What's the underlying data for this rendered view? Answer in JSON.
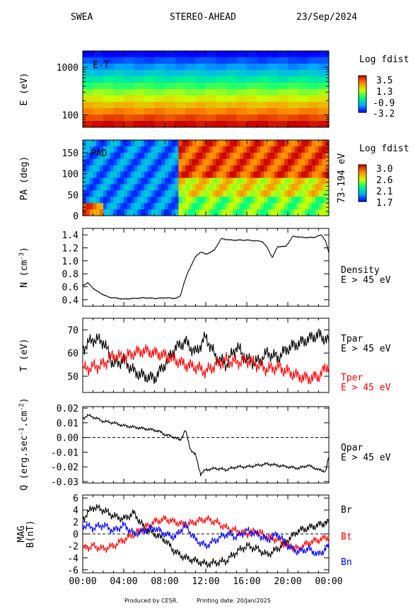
{
  "header": {
    "instrument": "SWEA",
    "spacecraft": "STEREO-AHEAD",
    "date": "23/Sep/2024"
  },
  "footer": {
    "produced": "Produced by CESR.",
    "printing": "Printing date: 20/Jan/2025"
  },
  "time_axis": {
    "ticks": [
      "00:00",
      "04:00",
      "08:00",
      "12:00",
      "16:00",
      "20:00",
      "00:00"
    ],
    "range_hours": [
      0,
      24
    ]
  },
  "colors": {
    "black": "#000000",
    "red": "#ff0000",
    "blue": "#0000ff"
  },
  "chart_data": [
    {
      "type": "heatmap",
      "panel": "energy-time",
      "inner_label": "E-T",
      "ylabel": "E (eV)",
      "yscale": "log",
      "ylim": [
        55,
        2200
      ],
      "yticks": [
        100,
        1000
      ],
      "ytick_labels": [
        "100",
        "1000"
      ],
      "colorbar": {
        "title": "Log fdist",
        "range": [
          -3.2,
          3.5
        ],
        "tick_labels": [
          "3.5",
          "1.3",
          "-0.9",
          "-3.2"
        ]
      },
      "rows_high_to_low": [
        -3.2,
        -2.6,
        -2.0,
        -1.4,
        -0.8,
        -0.2,
        0.4,
        1.0,
        1.6,
        2.2,
        2.8,
        3.4
      ]
    },
    {
      "type": "heatmap",
      "panel": "pitch-angle",
      "inner_label": "PAD",
      "ylabel": "PA (deg)",
      "right_label": "73-194 eV",
      "ylim": [
        0,
        180
      ],
      "yticks": [
        0,
        50,
        100,
        150
      ],
      "ytick_labels": [
        "0",
        "50",
        "100",
        "150"
      ],
      "colorbar": {
        "title": "Log fdist",
        "range": [
          1.7,
          3.0
        ],
        "tick_labels": [
          "3.0",
          "2.6",
          "2.1",
          "1.7"
        ]
      },
      "regimes": [
        {
          "hours": [
            0,
            9.5
          ],
          "level": 1.9
        },
        {
          "hours": [
            9.5,
            24
          ],
          "level": 2.5
        }
      ]
    },
    {
      "type": "line",
      "panel": "density",
      "ylabel": "N (cm-3)",
      "ylim": [
        0.3,
        1.5
      ],
      "yticks": [
        0.4,
        0.6,
        0.8,
        1.0,
        1.2,
        1.4
      ],
      "ytick_labels": [
        "0.4",
        "0.6",
        "0.8",
        "1.0",
        "1.2",
        "1.4"
      ],
      "series": [
        {
          "name": "Density",
          "sublabel": "E > 45 eV",
          "color": "#000000",
          "x": [
            0,
            0.5,
            1.0,
            1.5,
            2.0,
            2.5,
            3.0,
            4.0,
            5.0,
            6.0,
            7.0,
            8.0,
            9.0,
            9.5,
            9.8,
            10.2,
            10.6,
            11.0,
            11.5,
            12.0,
            12.8,
            13.5,
            14.5,
            16.0,
            17.5,
            18.0,
            18.5,
            19.0,
            19.8,
            20.5,
            21.5,
            22.5,
            23.3,
            23.7,
            24.0
          ],
          "y": [
            0.62,
            0.66,
            0.58,
            0.52,
            0.48,
            0.44,
            0.43,
            0.41,
            0.42,
            0.43,
            0.42,
            0.43,
            0.42,
            0.45,
            0.62,
            0.8,
            0.94,
            1.06,
            1.14,
            1.1,
            1.16,
            1.34,
            1.32,
            1.32,
            1.3,
            1.2,
            1.05,
            1.22,
            1.22,
            1.38,
            1.36,
            1.36,
            1.4,
            1.3,
            1.12
          ]
        }
      ]
    },
    {
      "type": "line",
      "panel": "temperature",
      "ylabel": "T (eV)",
      "ylim": [
        43,
        75
      ],
      "yticks": [
        50,
        60,
        70
      ],
      "ytick_labels": [
        "50",
        "60",
        "70"
      ],
      "series": [
        {
          "name": "Tpar",
          "sublabel": "E > 45 eV",
          "color": "#000000",
          "x": [
            0,
            1,
            2,
            3,
            4,
            5,
            6,
            7,
            8,
            9,
            10,
            11,
            12,
            13,
            14,
            15,
            16,
            17,
            18,
            19,
            20,
            21,
            22,
            23,
            24
          ],
          "y": [
            62,
            66,
            65,
            55,
            57,
            52,
            50,
            49,
            55,
            62,
            65,
            60,
            67,
            58,
            55,
            63,
            57,
            56,
            60,
            58,
            62,
            64,
            66,
            68,
            65
          ]
        },
        {
          "name": "Tper",
          "sublabel": "E > 45 eV",
          "color": "#ff0000",
          "x": [
            0,
            1,
            2,
            3,
            4,
            5,
            6,
            7,
            8,
            9,
            10,
            11,
            12,
            13,
            14,
            15,
            16,
            17,
            18,
            19,
            20,
            21,
            22,
            23,
            24
          ],
          "y": [
            53,
            54,
            55,
            59,
            58,
            60,
            61,
            60,
            59,
            57,
            55,
            54,
            52,
            55,
            57,
            56,
            57,
            55,
            53,
            54,
            52,
            50,
            49,
            50,
            55
          ]
        }
      ]
    },
    {
      "type": "line",
      "panel": "heat-flux",
      "ylabel": "Q (erg.sec-1.cm-2)",
      "ylim": [
        -0.031,
        0.021
      ],
      "yticks": [
        -0.03,
        -0.02,
        -0.01,
        0.0,
        0.01,
        0.02
      ],
      "ytick_labels": [
        "-0.03",
        "-0.02",
        "-0.01",
        "0.00",
        "0.01",
        "0.02"
      ],
      "zero_line": true,
      "series": [
        {
          "name": "Qpar",
          "sublabel": "E > 45 eV",
          "color": "#000000",
          "x": [
            0,
            0.5,
            1.0,
            2.0,
            3.0,
            4.0,
            5.0,
            6.0,
            7.0,
            7.5,
            8.0,
            8.5,
            9.0,
            9.5,
            10.0,
            10.5,
            11.0,
            11.5,
            12.0,
            13.0,
            14.0,
            15.0,
            16.0,
            17.0,
            18.0,
            19.0,
            20.0,
            21.0,
            22.0,
            23.0,
            23.7,
            24.0
          ],
          "y": [
            0.013,
            0.015,
            0.014,
            0.011,
            0.01,
            0.008,
            0.007,
            0.006,
            0.005,
            0.004,
            0.002,
            0.001,
            0.0,
            -0.002,
            0.005,
            -0.008,
            -0.012,
            -0.025,
            -0.022,
            -0.021,
            -0.022,
            -0.02,
            -0.02,
            -0.019,
            -0.018,
            -0.019,
            -0.02,
            -0.021,
            -0.019,
            -0.022,
            -0.023,
            -0.013
          ]
        }
      ]
    },
    {
      "type": "line",
      "panel": "magnetic-field",
      "ylabel": "MAG B(nT)",
      "ylim": [
        -6.5,
        6.5
      ],
      "yticks": [
        -6,
        -4,
        -2,
        0,
        2,
        4,
        6
      ],
      "ytick_labels": [
        "-6",
        "-4",
        "-2",
        "0",
        "2",
        "4",
        "6"
      ],
      "zero_line": true,
      "series": [
        {
          "name": "Br",
          "color": "#000000",
          "x": [
            0,
            1,
            2,
            3,
            4,
            5,
            6,
            7,
            8,
            9,
            10,
            11,
            12,
            13,
            14,
            15,
            16,
            17,
            18,
            19,
            20,
            21,
            22,
            23,
            24
          ],
          "y": [
            2.5,
            4.5,
            4.0,
            3.0,
            2.5,
            3.5,
            1.0,
            0.0,
            -1.0,
            -3.0,
            -4.0,
            -4.5,
            -5.0,
            -4.8,
            -4.5,
            -3.0,
            -2.0,
            -2.5,
            -3.5,
            -2.5,
            -1.0,
            0.5,
            1.0,
            1.5,
            2.0
          ]
        },
        {
          "name": "Bt",
          "color": "#ff0000",
          "x": [
            0,
            1,
            2,
            3,
            4,
            5,
            6,
            7,
            8,
            9,
            10,
            11,
            12,
            13,
            14,
            15,
            16,
            17,
            18,
            19,
            20,
            21,
            22,
            23,
            24
          ],
          "y": [
            -2.5,
            -2.0,
            -2.5,
            -2.0,
            -1.0,
            0.0,
            1.0,
            2.0,
            2.5,
            2.0,
            1.5,
            2.0,
            2.5,
            2.0,
            1.0,
            0.5,
            0.0,
            0.5,
            -0.5,
            -1.0,
            -2.0,
            -2.5,
            -1.5,
            -1.0,
            -0.5
          ]
        },
        {
          "name": "Bn",
          "color": "#0000ff",
          "x": [
            0,
            1,
            2,
            3,
            4,
            5,
            6,
            7,
            8,
            9,
            10,
            11,
            12,
            13,
            14,
            15,
            16,
            17,
            18,
            19,
            20,
            21,
            22,
            23,
            24
          ],
          "y": [
            1.5,
            1.0,
            1.5,
            0.5,
            1.5,
            0.0,
            0.5,
            1.0,
            0.0,
            -0.5,
            1.5,
            -1.0,
            -2.0,
            -1.0,
            0.0,
            -0.5,
            0.5,
            0.0,
            -1.0,
            0.0,
            -2.0,
            -3.0,
            -2.5,
            -3.5,
            -2.0
          ]
        }
      ]
    }
  ]
}
